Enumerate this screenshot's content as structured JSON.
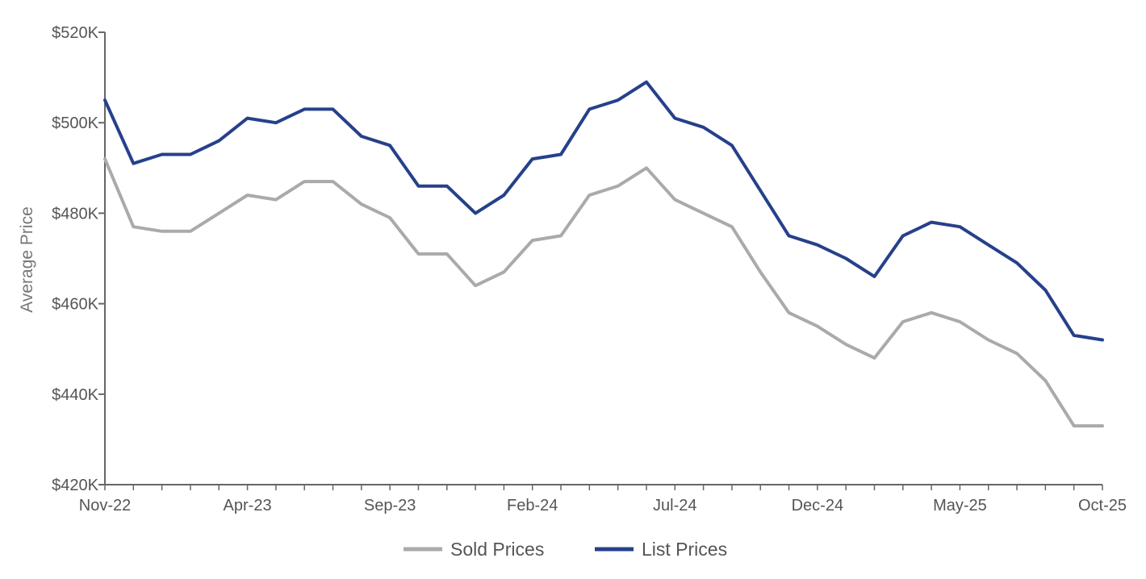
{
  "chart_data": {
    "type": "line",
    "ylabel": "Average Price",
    "ylim": [
      420000,
      520000
    ],
    "y_ticks": [
      {
        "value": 420000,
        "label": "$420K"
      },
      {
        "value": 440000,
        "label": "$440K"
      },
      {
        "value": 460000,
        "label": "$460K"
      },
      {
        "value": 480000,
        "label": "$480K"
      },
      {
        "value": 500000,
        "label": "$500K"
      },
      {
        "value": 520000,
        "label": "$520K"
      }
    ],
    "x": [
      "Nov-22",
      "Dec-22",
      "Jan-23",
      "Feb-23",
      "Mar-23",
      "Apr-23",
      "May-23",
      "Jun-23",
      "Jul-23",
      "Aug-23",
      "Sep-23",
      "Oct-23",
      "Nov-23",
      "Dec-23",
      "Jan-24",
      "Feb-24",
      "Mar-24",
      "Apr-24",
      "May-24",
      "Jun-24",
      "Jul-24",
      "Aug-24",
      "Sep-24",
      "Oct-24",
      "Nov-24",
      "Dec-24",
      "Jan-25",
      "Feb-25",
      "Mar-25",
      "Apr-25",
      "May-25",
      "Jun-25",
      "Jul-25",
      "Aug-25",
      "Sep-25",
      "Oct-25"
    ],
    "x_tick_labels": [
      {
        "index": 0,
        "label": "Nov-22"
      },
      {
        "index": 5,
        "label": "Apr-23"
      },
      {
        "index": 10,
        "label": "Sep-23"
      },
      {
        "index": 15,
        "label": "Feb-24"
      },
      {
        "index": 20,
        "label": "Jul-24"
      },
      {
        "index": 25,
        "label": "Dec-24"
      },
      {
        "index": 30,
        "label": "May-25"
      },
      {
        "index": 35,
        "label": "Oct-25"
      }
    ],
    "series": [
      {
        "name": "Sold Prices",
        "color": "#aaaaaa",
        "values": [
          492000,
          477000,
          476000,
          476000,
          480000,
          484000,
          483000,
          487000,
          487000,
          482000,
          479000,
          471000,
          471000,
          464000,
          467000,
          474000,
          475000,
          484000,
          486000,
          490000,
          483000,
          480000,
          477000,
          467000,
          458000,
          455000,
          451000,
          448000,
          456000,
          458000,
          456000,
          452000,
          449000,
          443000,
          433000,
          433000
        ]
      },
      {
        "name": "List Prices",
        "color": "#26408b",
        "values": [
          505000,
          491000,
          493000,
          493000,
          496000,
          501000,
          500000,
          503000,
          503000,
          497000,
          495000,
          486000,
          486000,
          480000,
          484000,
          492000,
          493000,
          503000,
          505000,
          509000,
          501000,
          499000,
          495000,
          485000,
          475000,
          473000,
          470000,
          466000,
          475000,
          478000,
          477000,
          473000,
          469000,
          463000,
          453000,
          452000
        ]
      }
    ],
    "legend": {
      "position": "bottom"
    },
    "grid": false
  }
}
